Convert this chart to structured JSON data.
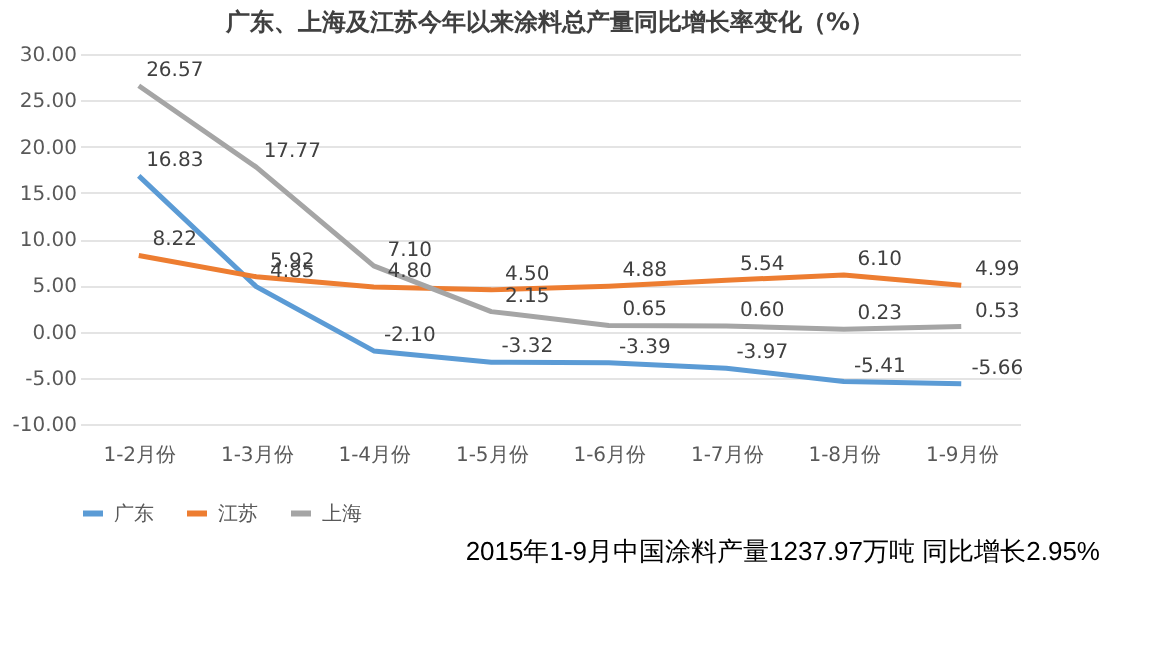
{
  "chart_data": {
    "type": "line",
    "title": "广东、上海及江苏今年以来涂料总产量同比增长率变化（%）",
    "categories": [
      "1-2月份",
      "1-3月份",
      "1-4月份",
      "1-5月份",
      "1-6月份",
      "1-7月份",
      "1-8月份",
      "1-9月份"
    ],
    "series": [
      {
        "name": "广东",
        "color": "#5b9bd5",
        "values": [
          16.83,
          4.85,
          -2.1,
          -3.32,
          -3.39,
          -3.97,
          -5.41,
          -5.66
        ],
        "value_labels": [
          "16.83",
          "4.85",
          "-2.10",
          "-3.32",
          "-3.39",
          "-3.97",
          "-5.41",
          "-5.66"
        ]
      },
      {
        "name": "江苏",
        "color": "#ed7d31",
        "values": [
          8.22,
          5.92,
          4.8,
          4.5,
          4.88,
          5.54,
          6.1,
          4.99
        ],
        "value_labels": [
          "8.22",
          "5.92",
          "4.80",
          "4.50",
          "4.88",
          "5.54",
          "6.10",
          "4.99"
        ]
      },
      {
        "name": "上海",
        "color": "#a5a5a5",
        "values": [
          26.57,
          17.77,
          7.1,
          2.15,
          0.65,
          0.6,
          0.23,
          0.53
        ],
        "value_labels": [
          "26.57",
          "17.77",
          "7.10",
          "2.15",
          "0.65",
          "0.60",
          "0.23",
          "0.53"
        ]
      }
    ],
    "ylim": [
      -10,
      30
    ],
    "yticks": [
      {
        "value": -10,
        "label": "-10.00"
      },
      {
        "value": -5,
        "label": "-5.00"
      },
      {
        "value": 0,
        "label": "0.00"
      },
      {
        "value": 5,
        "label": "5.00"
      },
      {
        "value": 10,
        "label": "10.00"
      },
      {
        "value": 15,
        "label": "15.00"
      },
      {
        "value": 20,
        "label": "20.00"
      },
      {
        "value": 25,
        "label": "25.00"
      },
      {
        "value": 30,
        "label": "30.00"
      }
    ],
    "grid": "y",
    "legend": "bottom",
    "marker": "none",
    "line_style": "solid",
    "annotations": [
      "2015年1-9月中国涂料产量1237.97万吨 同比增长2.95%"
    ]
  }
}
